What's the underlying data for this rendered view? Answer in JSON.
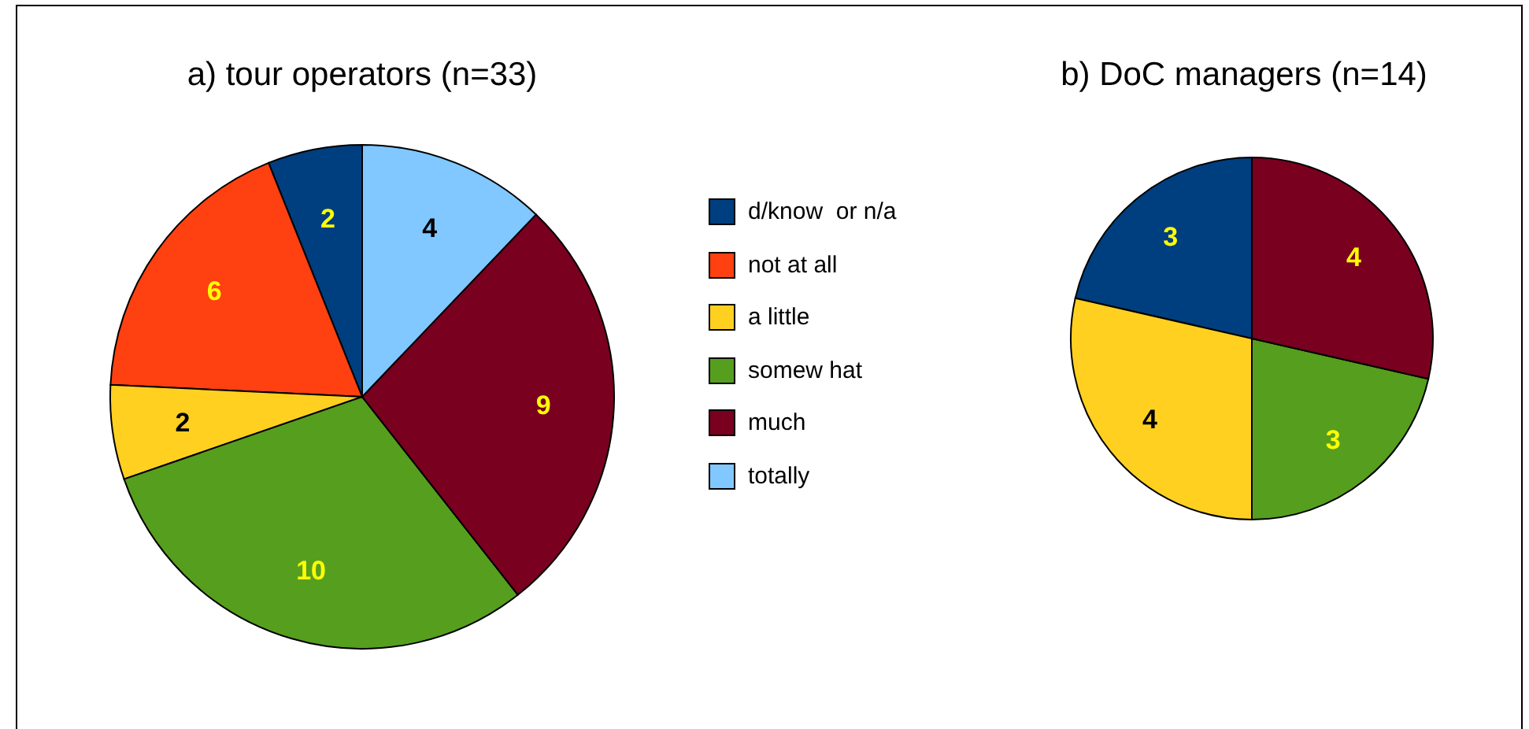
{
  "chart_data": [
    {
      "type": "pie",
      "title": "a) tour operators (n=33)",
      "categories": [
        "d/know  or n/a",
        "not at all",
        "a little",
        "somew hat",
        "much",
        "totally"
      ],
      "values": [
        2,
        6,
        2,
        10,
        9,
        4
      ],
      "colors": [
        "#003f7f",
        "#ff4010",
        "#ffd020",
        "#569e1e",
        "#7a0020",
        "#80c8ff"
      ],
      "data_labels": true,
      "legend": "right"
    },
    {
      "type": "pie",
      "title": "b) DoC managers (n=14)",
      "categories": [
        null,
        null,
        null,
        null
      ],
      "values": [
        3,
        4,
        3,
        4
      ],
      "colors": [
        "#003f7f",
        "#ffd020",
        "#569e1e",
        "#7a0020"
      ],
      "data_labels": true
    }
  ]
}
